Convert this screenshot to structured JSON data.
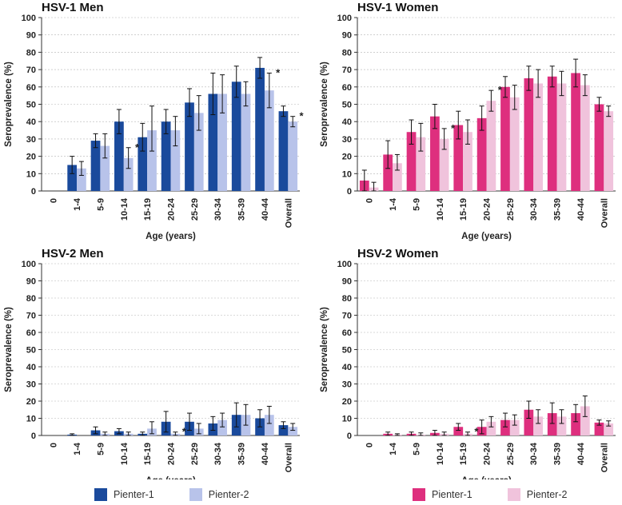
{
  "chart_data": [
    {
      "type": "bar",
      "title": "HSV-1 Men",
      "xlabel": "Age (years)",
      "ylabel": "Seroprevalence (%)",
      "ylim": [
        0,
        100
      ],
      "yticks": [
        "0",
        "10",
        "20",
        "30",
        "40",
        "50",
        "60",
        "70",
        "80",
        "90",
        "100"
      ],
      "categories": [
        "0",
        "1-4",
        "5-9",
        "10-14",
        "15-19",
        "20-24",
        "25-29",
        "30-34",
        "35-39",
        "40-44",
        "Overall"
      ],
      "series": [
        {
          "name": "Pienter-1",
          "values": [
            0,
            15,
            29,
            40,
            31,
            40,
            51,
            56,
            63,
            71,
            46
          ],
          "err_low": [
            0,
            5,
            4,
            7,
            8,
            7,
            8,
            12,
            9,
            6,
            3
          ],
          "err_high": [
            0,
            5,
            4,
            7,
            8,
            7,
            8,
            12,
            9,
            6,
            3
          ]
        },
        {
          "name": "Pienter-2",
          "values": [
            0,
            13,
            26,
            19,
            35,
            35,
            45,
            56,
            56,
            58,
            40
          ],
          "err_low": [
            0,
            4,
            7,
            6,
            12,
            9,
            10,
            11,
            7,
            10,
            3
          ],
          "err_high": [
            0,
            4,
            7,
            6,
            14,
            8,
            10,
            11,
            7,
            10,
            3
          ]
        }
      ],
      "significance": [
        {
          "category": "10-14",
          "label": "*"
        },
        {
          "category": "40-44",
          "label": "*"
        },
        {
          "category": "Overall",
          "label": "*"
        }
      ]
    },
    {
      "type": "bar",
      "title": "HSV-1 Women",
      "xlabel": "Age (years)",
      "ylabel": "Seroprevalence (%)",
      "ylim": [
        0,
        100
      ],
      "yticks": [
        "0",
        "10",
        "20",
        "30",
        "40",
        "50",
        "60",
        "70",
        "80",
        "90",
        "100"
      ],
      "categories": [
        "0",
        "1-4",
        "5-9",
        "10-14",
        "15-19",
        "20-24",
        "25-29",
        "30-34",
        "35-39",
        "40-44",
        "Overall"
      ],
      "series": [
        {
          "name": "Pienter-1",
          "values": [
            6,
            21,
            34,
            43,
            38,
            42,
            60,
            65,
            66,
            68,
            50
          ],
          "err_low": [
            6,
            8,
            7,
            7,
            8,
            7,
            6,
            7,
            6,
            8,
            4
          ],
          "err_high": [
            6,
            8,
            7,
            7,
            8,
            7,
            6,
            7,
            6,
            8,
            4
          ]
        },
        {
          "name": "Pienter-2",
          "values": [
            2,
            16,
            31,
            30,
            34,
            52,
            54,
            62,
            62,
            61,
            46
          ],
          "err_low": [
            2,
            4,
            8,
            6,
            7,
            6,
            7,
            8,
            7,
            6,
            3
          ],
          "err_high": [
            3,
            5,
            8,
            6,
            7,
            6,
            7,
            8,
            7,
            6,
            3
          ]
        }
      ],
      "significance": [
        {
          "category": "10-14",
          "label": "*"
        },
        {
          "category": "20-24",
          "label": "*"
        }
      ]
    },
    {
      "type": "bar",
      "title": "HSV-2 Men",
      "xlabel": "Age (years)",
      "ylabel": "Seroprevalence (%)",
      "ylim": [
        0,
        100
      ],
      "yticks": [
        "0",
        "10",
        "20",
        "30",
        "40",
        "50",
        "60",
        "70",
        "80",
        "90",
        "100"
      ],
      "categories": [
        "0",
        "1-4",
        "5-9",
        "10-14",
        "15-19",
        "20-24",
        "25-29",
        "30-34",
        "35-39",
        "40-44",
        "Overall"
      ],
      "series": [
        {
          "name": "Pienter-1",
          "values": [
            0,
            0.5,
            3,
            2.5,
            1,
            8,
            8,
            7,
            12,
            10,
            6
          ],
          "err_low": [
            0,
            0.5,
            2,
            1.5,
            1,
            6,
            5,
            4,
            7,
            5,
            2
          ],
          "err_high": [
            0,
            0.5,
            2,
            1.5,
            1,
            6,
            5,
            4,
            7,
            5,
            2
          ]
        },
        {
          "name": "Pienter-2",
          "values": [
            0,
            0,
            1,
            1,
            4,
            1,
            4,
            9,
            12,
            12,
            5
          ],
          "err_low": [
            0,
            0,
            1,
            1,
            3,
            1,
            3,
            4,
            6,
            5,
            2
          ],
          "err_high": [
            0,
            0,
            1,
            1,
            4,
            1,
            3,
            4,
            6,
            5,
            2
          ]
        }
      ],
      "significance": [
        {
          "category": "20-24",
          "label": "*"
        }
      ]
    },
    {
      "type": "bar",
      "title": "HSV-2 Women",
      "xlabel": "Age (years)",
      "ylabel": "Seroprevalence (%)",
      "ylim": [
        0,
        100
      ],
      "yticks": [
        "0",
        "10",
        "20",
        "30",
        "40",
        "50",
        "60",
        "70",
        "80",
        "90",
        "100"
      ],
      "categories": [
        "0",
        "1-4",
        "5-9",
        "10-14",
        "15-19",
        "20-24",
        "25-29",
        "30-34",
        "35-39",
        "40-44",
        "Overall"
      ],
      "series": [
        {
          "name": "Pienter-1",
          "values": [
            0,
            1,
            1,
            1.5,
            5,
            5,
            9,
            15,
            13,
            13,
            7.5
          ],
          "err_low": [
            0,
            1,
            1,
            1.5,
            2,
            4,
            4,
            5,
            6,
            5,
            1.5
          ],
          "err_high": [
            0,
            1,
            1,
            1.5,
            2,
            4,
            4,
            5,
            6,
            5,
            1.5
          ]
        },
        {
          "name": "Pienter-2",
          "values": [
            0,
            0.5,
            0.5,
            1,
            1,
            8,
            9,
            11,
            11,
            17,
            7
          ],
          "err_low": [
            0,
            0.5,
            0.5,
            1,
            1,
            3,
            3,
            4,
            4,
            6,
            1.5
          ],
          "err_high": [
            0,
            0.5,
            1,
            1,
            1,
            3,
            3,
            4,
            4,
            6,
            1.5
          ]
        }
      ],
      "significance": [
        {
          "category": "15-19",
          "label": "*"
        }
      ]
    }
  ],
  "legends": [
    {
      "items": [
        {
          "label": "Pienter-1",
          "color": "#1a4a9c"
        },
        {
          "label": "Pienter-2",
          "color": "#b8c3ea"
        }
      ]
    },
    {
      "items": [
        {
          "label": "Pienter-1",
          "color": "#de2f7e"
        },
        {
          "label": "Pienter-2",
          "color": "#f0c3dc"
        }
      ]
    }
  ],
  "colors": {
    "men_p1": "#1a4a9c",
    "men_p2": "#b8c3ea",
    "women_p1": "#de2f7e",
    "women_p2": "#f0c3dc",
    "gridline": "#b5b5b5",
    "axis": "#333333"
  }
}
